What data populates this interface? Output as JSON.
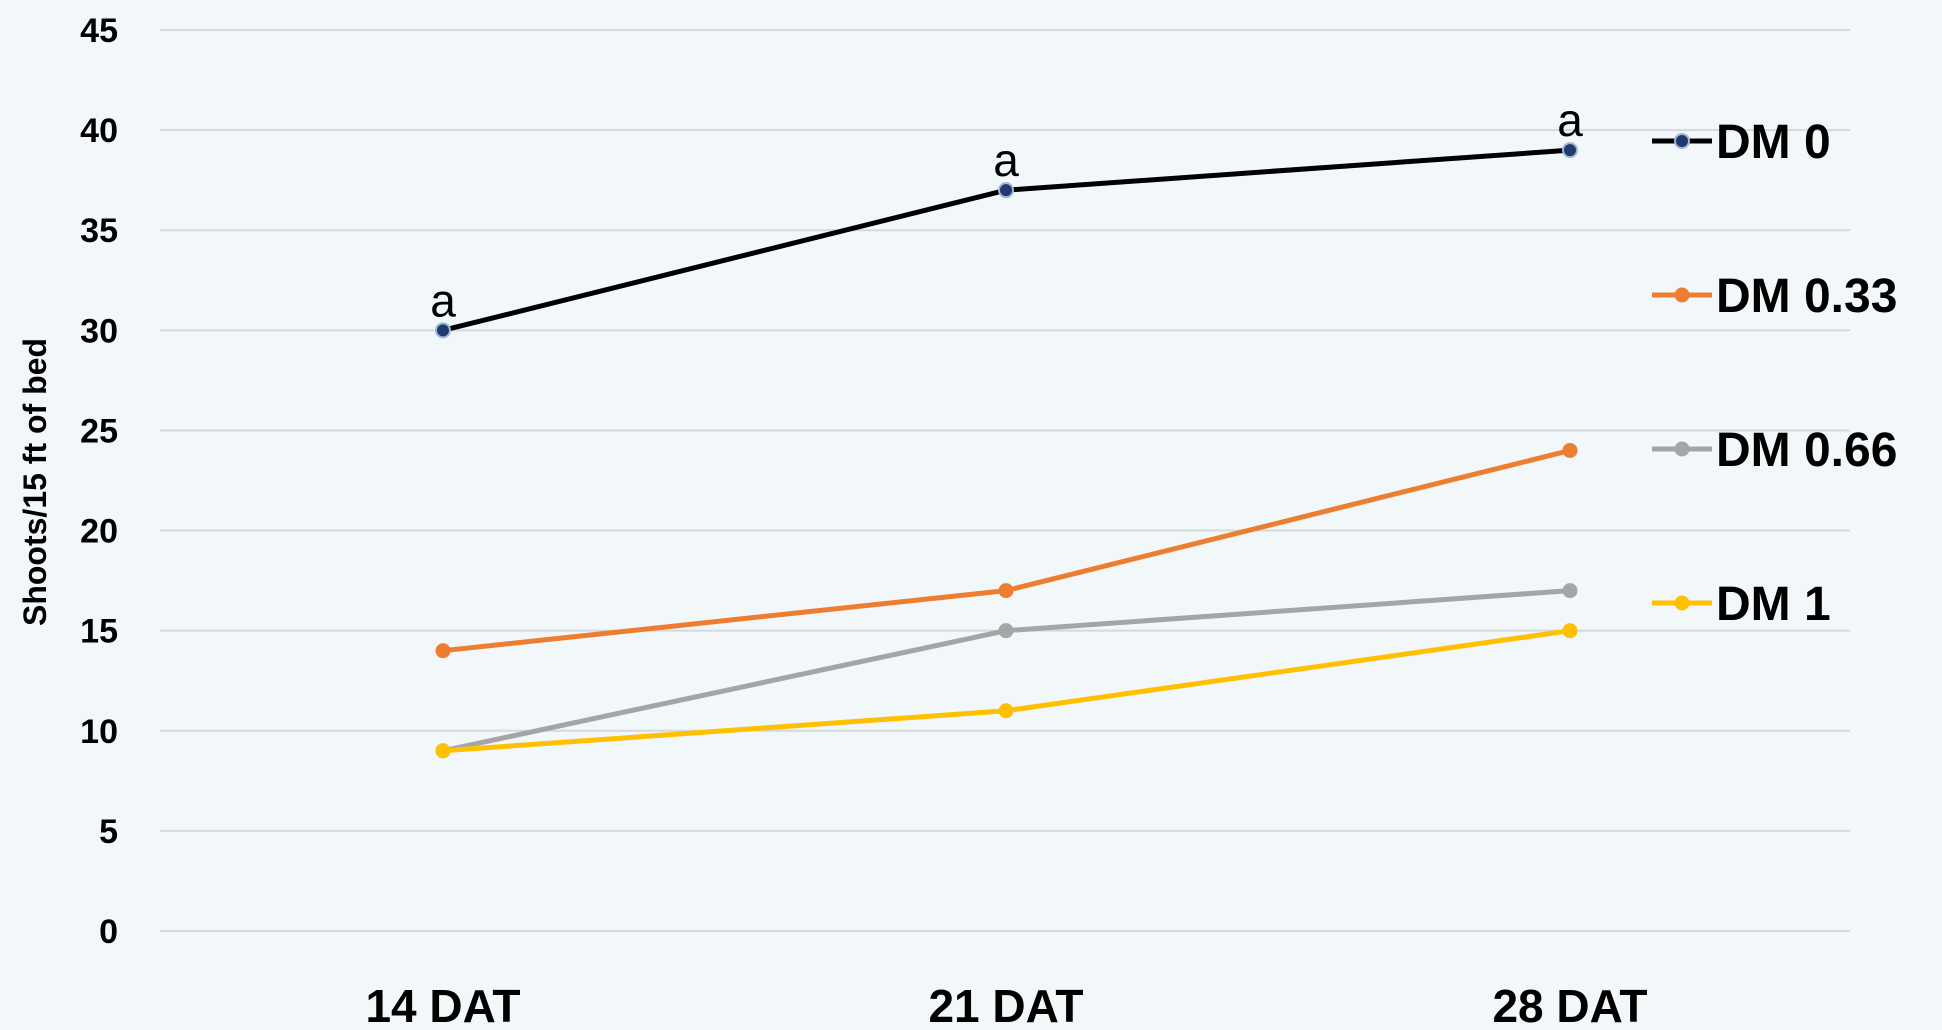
{
  "chart_data": {
    "type": "line",
    "title": "",
    "xlabel": "",
    "ylabel": "Shoots/15 ft of bed",
    "categories": [
      "14 DAT",
      "21 DAT",
      "28 DAT"
    ],
    "ylim": [
      0,
      45
    ],
    "yticks": [
      0,
      5,
      10,
      15,
      20,
      25,
      30,
      35,
      40,
      45
    ],
    "grid": true,
    "legend_position": "right",
    "series": [
      {
        "name": "DM 0",
        "color": "#000000",
        "marker_fill": "#1f3a6b",
        "values": [
          30,
          37,
          39
        ]
      },
      {
        "name": "DM 0.33",
        "color": "#ed7d31",
        "marker_fill": "#ed7d31",
        "values": [
          14,
          17,
          24
        ]
      },
      {
        "name": "DM 0.66",
        "color": "#a5a5a5",
        "marker_fill": "#a5a5a5",
        "values": [
          9,
          15,
          17
        ]
      },
      {
        "name": "DM 1",
        "color": "#ffc000",
        "marker_fill": "#ffc000",
        "values": [
          9,
          11,
          15
        ]
      }
    ],
    "annotations": [
      {
        "text": "a",
        "category": "14 DAT",
        "value": 30
      },
      {
        "text": "a",
        "category": "21 DAT",
        "value": 37
      },
      {
        "text": "a",
        "category": "28 DAT",
        "value": 39
      }
    ]
  }
}
